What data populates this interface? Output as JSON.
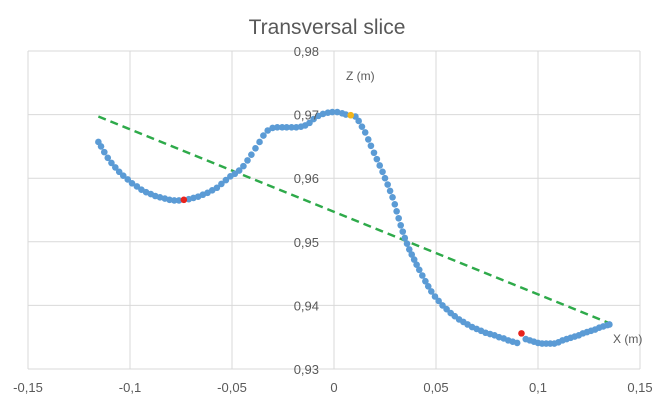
{
  "chart_data": {
    "type": "scatter",
    "title": "Transversal slice",
    "xlabel": "X (m)",
    "ylabel": "Z (m)",
    "xlim": [
      -0.15,
      0.15
    ],
    "ylim": [
      0.93,
      0.98
    ],
    "x_ticks": [
      -0.15,
      -0.1,
      -0.05,
      0,
      0.05,
      0.1,
      0.15
    ],
    "x_tick_labels": [
      "-0,15",
      "-0,1",
      "-0,05",
      "0",
      "0,05",
      "0,1",
      "0,15"
    ],
    "y_ticks": [
      0.93,
      0.94,
      0.95,
      0.96,
      0.97,
      0.98
    ],
    "y_tick_labels": [
      "0,93",
      "0,94",
      "0,95",
      "0,96",
      "0,97",
      "0,98"
    ],
    "grid": "vertical and horizontal major gridlines",
    "colors": {
      "points": "#5b9bd5",
      "trend": "#2eaa4a",
      "highlight_red": "#e8231d",
      "highlight_orange": "#f2b51b",
      "grid": "#d9d9d9",
      "text": "#595959"
    },
    "series": [
      {
        "points": [
          [
            -0.1155,
            0.9657
          ],
          [
            -0.1142,
            0.965
          ],
          [
            -0.1126,
            0.9641
          ],
          [
            -0.1109,
            0.9632
          ],
          [
            -0.1091,
            0.9624
          ],
          [
            -0.1072,
            0.9617
          ],
          [
            -0.1053,
            0.961
          ],
          [
            -0.1033,
            0.9604
          ],
          [
            -0.1011,
            0.9598
          ],
          [
            -0.099,
            0.9592
          ],
          [
            -0.0966,
            0.9587
          ],
          [
            -0.0944,
            0.9582
          ],
          [
            -0.0921,
            0.9578
          ],
          [
            -0.0898,
            0.9575
          ],
          [
            -0.0876,
            0.9572
          ],
          [
            -0.0853,
            0.957
          ],
          [
            -0.0829,
            0.9568
          ],
          [
            -0.0806,
            0.9566
          ],
          [
            -0.0783,
            0.9565
          ],
          [
            -0.076,
            0.9565
          ],
          [
            -0.0712,
            0.9567
          ],
          [
            -0.0689,
            0.9569
          ],
          [
            -0.0666,
            0.9571
          ],
          [
            -0.0643,
            0.9574
          ],
          [
            -0.062,
            0.9577
          ],
          [
            -0.0597,
            0.9581
          ],
          [
            -0.0574,
            0.9585
          ],
          [
            -0.0552,
            0.9591
          ],
          [
            -0.053,
            0.9597
          ],
          [
            -0.0508,
            0.9603
          ],
          [
            -0.0486,
            0.9607
          ],
          [
            -0.0465,
            0.9612
          ],
          [
            -0.0444,
            0.9619
          ],
          [
            -0.0424,
            0.9628
          ],
          [
            -0.0405,
            0.9637
          ],
          [
            -0.0385,
            0.9647
          ],
          [
            -0.0365,
            0.9657
          ],
          [
            -0.0346,
            0.9667
          ],
          [
            -0.0325,
            0.9675
          ],
          [
            -0.0301,
            0.9679
          ],
          [
            -0.0278,
            0.968
          ],
          [
            -0.0254,
            0.968
          ],
          [
            -0.0232,
            0.968
          ],
          [
            -0.0208,
            0.968
          ],
          [
            -0.0185,
            0.968
          ],
          [
            -0.0162,
            0.9681
          ],
          [
            -0.0141,
            0.9683
          ],
          [
            -0.012,
            0.9687
          ],
          [
            -0.01,
            0.9693
          ],
          [
            -0.0077,
            0.9698
          ],
          [
            -0.0054,
            0.9701
          ],
          [
            -0.003,
            0.9703
          ],
          [
            -0.0008,
            0.9704
          ],
          [
            0.0016,
            0.9704
          ],
          [
            0.004,
            0.9702
          ],
          [
            0.0058,
            0.97
          ],
          [
            0.0105,
            0.9697
          ],
          [
            0.0121,
            0.969
          ],
          [
            0.0137,
            0.9681
          ],
          [
            0.0153,
            0.9672
          ],
          [
            0.0168,
            0.9661
          ],
          [
            0.0181,
            0.9651
          ],
          [
            0.0196,
            0.964
          ],
          [
            0.021,
            0.963
          ],
          [
            0.0224,
            0.962
          ],
          [
            0.0238,
            0.961
          ],
          [
            0.025,
            0.96
          ],
          [
            0.0263,
            0.959
          ],
          [
            0.0275,
            0.958
          ],
          [
            0.0287,
            0.957
          ],
          [
            0.0298,
            0.9559
          ],
          [
            0.0307,
            0.9548
          ],
          [
            0.0317,
            0.9537
          ],
          [
            0.0327,
            0.9526
          ],
          [
            0.0337,
            0.9516
          ],
          [
            0.0347,
            0.9506
          ],
          [
            0.0358,
            0.9497
          ],
          [
            0.0369,
            0.9488
          ],
          [
            0.0381,
            0.948
          ],
          [
            0.0393,
            0.9472
          ],
          [
            0.0405,
            0.9464
          ],
          [
            0.0418,
            0.9456
          ],
          [
            0.0433,
            0.9447
          ],
          [
            0.0448,
            0.9438
          ],
          [
            0.0462,
            0.943
          ],
          [
            0.0477,
            0.9422
          ],
          [
            0.0495,
            0.9414
          ],
          [
            0.0513,
            0.9407
          ],
          [
            0.0532,
            0.94
          ],
          [
            0.0552,
            0.9394
          ],
          [
            0.0572,
            0.9388
          ],
          [
            0.0592,
            0.9383
          ],
          [
            0.0613,
            0.9378
          ],
          [
            0.0634,
            0.9374
          ],
          [
            0.0655,
            0.937
          ],
          [
            0.0677,
            0.9366
          ],
          [
            0.0699,
            0.9363
          ],
          [
            0.0721,
            0.936
          ],
          [
            0.0743,
            0.9357
          ],
          [
            0.0765,
            0.9355
          ],
          [
            0.0787,
            0.9353
          ],
          [
            0.0809,
            0.935
          ],
          [
            0.0832,
            0.9348
          ],
          [
            0.0854,
            0.9345
          ],
          [
            0.0876,
            0.9343
          ],
          [
            0.0898,
            0.9341
          ],
          [
            0.094,
            0.9347
          ],
          [
            0.096,
            0.9345
          ],
          [
            0.098,
            0.9343
          ],
          [
            0.1,
            0.9341
          ],
          [
            0.102,
            0.934
          ],
          [
            0.104,
            0.934
          ],
          [
            0.106,
            0.934
          ],
          [
            0.108,
            0.934
          ],
          [
            0.11,
            0.9342
          ],
          [
            0.112,
            0.9345
          ],
          [
            0.114,
            0.9347
          ],
          [
            0.116,
            0.9349
          ],
          [
            0.118,
            0.9351
          ],
          [
            0.12,
            0.9353
          ],
          [
            0.122,
            0.9356
          ],
          [
            0.124,
            0.9358
          ],
          [
            0.126,
            0.936
          ],
          [
            0.128,
            0.9362
          ],
          [
            0.13,
            0.9365
          ],
          [
            0.132,
            0.9367
          ],
          [
            0.134,
            0.9369
          ],
          [
            0.135,
            0.937
          ]
        ]
      },
      {
        "type": "line",
        "style": "dashed",
        "points": [
          [
            -0.1155,
            0.9697
          ],
          [
            0.135,
            0.9372
          ]
        ]
      }
    ],
    "highlight_points": [
      {
        "x": -0.0736,
        "y": 0.9566,
        "color": "red"
      },
      {
        "x": 0.0082,
        "y": 0.9699,
        "color": "orange"
      },
      {
        "x": 0.0919,
        "y": 0.9356,
        "color": "red"
      }
    ]
  }
}
